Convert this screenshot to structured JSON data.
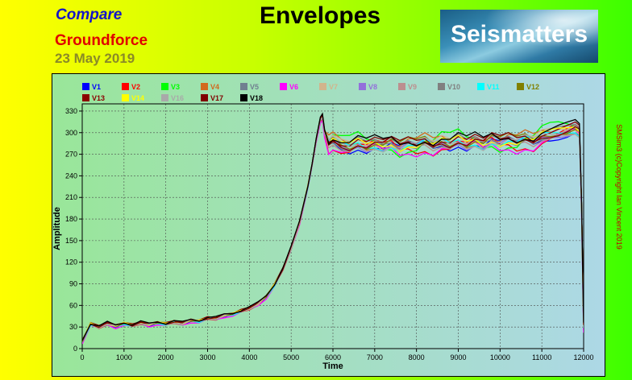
{
  "header": {
    "compare": "Compare",
    "source": "Groundforce",
    "date": "23 May 2019",
    "title": "Envelopes",
    "logo_text": "Seismatters",
    "copyright": "SMSim3 (c)Copyright Ian Vincent 2019"
  },
  "colors": {
    "background_left": "#ffff00",
    "background_right": "#3cff00",
    "plot_left": "#99e699",
    "plot_right": "#add8e6"
  },
  "chart_data": {
    "type": "line",
    "title": "Envelopes",
    "xlabel": "Time",
    "ylabel": "Amplitude",
    "xlim": [
      0,
      12000
    ],
    "ylim": [
      0,
      340
    ],
    "xticks": [
      0,
      1000,
      2000,
      3000,
      4000,
      5000,
      6000,
      7000,
      8000,
      9000,
      10000,
      11000,
      12000
    ],
    "yticks": [
      0,
      30,
      60,
      90,
      120,
      150,
      180,
      210,
      240,
      270,
      300,
      330
    ],
    "grid": true,
    "legend_position": "top",
    "series": [
      {
        "name": "V1",
        "color": "#0000ff"
      },
      {
        "name": "V2",
        "color": "#ff0000"
      },
      {
        "name": "V3",
        "color": "#00ff00"
      },
      {
        "name": "V4",
        "color": "#d2691e"
      },
      {
        "name": "V5",
        "color": "#708090"
      },
      {
        "name": "V6",
        "color": "#ff00ff"
      },
      {
        "name": "V7",
        "color": "#d2b48c"
      },
      {
        "name": "V8",
        "color": "#9370db"
      },
      {
        "name": "V9",
        "color": "#bc8f8f"
      },
      {
        "name": "V10",
        "color": "#808080"
      },
      {
        "name": "V11",
        "color": "#00ffff"
      },
      {
        "name": "V12",
        "color": "#808000"
      },
      {
        "name": "V13",
        "color": "#8b0000"
      },
      {
        "name": "V14",
        "color": "#ffff00"
      },
      {
        "name": "V16",
        "color": "#a9a9a9"
      },
      {
        "name": "V17",
        "color": "#800000"
      },
      {
        "name": "V18",
        "color": "#000000"
      }
    ],
    "envelope_x": [
      0,
      200,
      400,
      600,
      800,
      1000,
      1200,
      1400,
      1600,
      1800,
      2000,
      2200,
      2400,
      2600,
      2800,
      3000,
      3200,
      3400,
      3600,
      3800,
      4000,
      4200,
      4400,
      4600,
      4800,
      5000,
      5200,
      5400,
      5500,
      5600,
      5700,
      5750,
      5800,
      5900,
      6000,
      6200,
      6400,
      6600,
      6800,
      7000,
      7200,
      7400,
      7600,
      7800,
      8000,
      8200,
      8400,
      8600,
      8800,
      9000,
      9200,
      9400,
      9600,
      9800,
      10000,
      10200,
      10400,
      10600,
      10800,
      11000,
      11200,
      11400,
      11600,
      11800,
      11900,
      11950,
      12000
    ],
    "envelope_y_mean": [
      10,
      34,
      30,
      35,
      31,
      35,
      32,
      36,
      33,
      36,
      34,
      37,
      35,
      39,
      38,
      42,
      42,
      46,
      48,
      52,
      56,
      62,
      72,
      88,
      110,
      140,
      175,
      225,
      255,
      290,
      318,
      322,
      300,
      285,
      290,
      283,
      280,
      286,
      280,
      284,
      280,
      285,
      278,
      284,
      282,
      288,
      282,
      288,
      284,
      290,
      283,
      288,
      282,
      290,
      285,
      290,
      286,
      292,
      288,
      296,
      298,
      300,
      302,
      305,
      300,
      200,
      30
    ],
    "series_offsets": [
      {
        "name": "V1",
        "offset": -3,
        "amp": 8
      },
      {
        "name": "V2",
        "offset": -4,
        "amp": 12
      },
      {
        "name": "V3",
        "offset": 2,
        "amp": 16
      },
      {
        "name": "V4",
        "offset": 3,
        "amp": 10
      },
      {
        "name": "V5",
        "offset": 0,
        "amp": 7
      },
      {
        "name": "V6",
        "offset": -8,
        "amp": 9
      },
      {
        "name": "V7",
        "offset": 1,
        "amp": 8
      },
      {
        "name": "V8",
        "offset": -2,
        "amp": 6
      },
      {
        "name": "V9",
        "offset": 0,
        "amp": 9
      },
      {
        "name": "V10",
        "offset": 2,
        "amp": 7
      },
      {
        "name": "V11",
        "offset": -1,
        "amp": 6
      },
      {
        "name": "V12",
        "offset": 3,
        "amp": 8
      },
      {
        "name": "V13",
        "offset": 4,
        "amp": 7
      },
      {
        "name": "V14",
        "offset": 1,
        "amp": 6
      },
      {
        "name": "V16",
        "offset": -1,
        "amp": 7
      },
      {
        "name": "V17",
        "offset": 3,
        "amp": 9
      },
      {
        "name": "V18",
        "offset": 6,
        "amp": 8
      }
    ]
  }
}
